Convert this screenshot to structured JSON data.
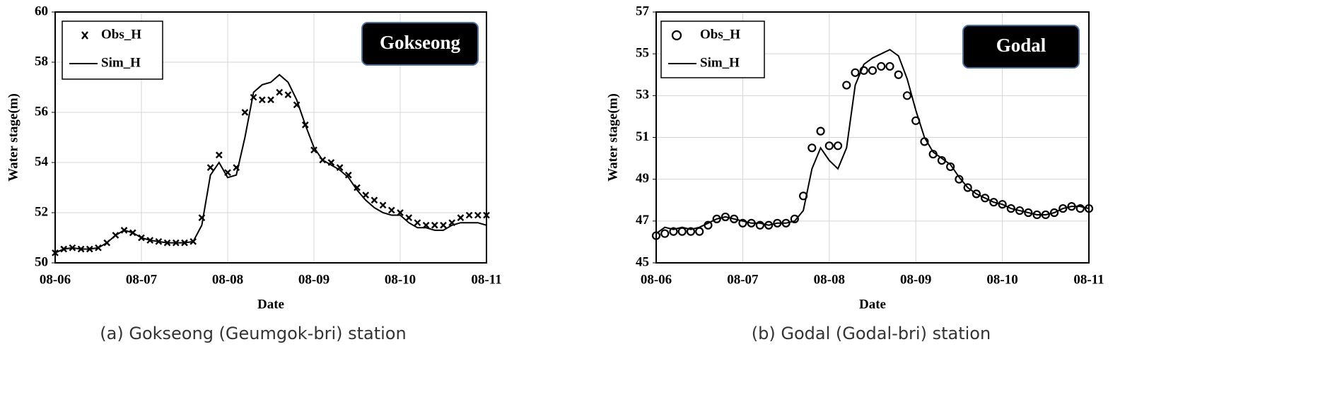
{
  "chart_data": [
    {
      "type": "line",
      "caption": "(a) Gokseong (Geumgok-bri) station",
      "xlabel": "Date",
      "ylabel": "Water stage(m)",
      "annotation": "Gokseong",
      "grid": true,
      "legend": "upper left",
      "x": [
        0,
        0.1,
        0.2,
        0.3,
        0.4,
        0.5,
        0.6,
        0.7,
        0.8,
        0.9,
        1.0,
        1.1,
        1.2,
        1.3,
        1.4,
        1.5,
        1.6,
        1.7,
        1.8,
        1.9,
        2.0,
        2.1,
        2.2,
        2.3,
        2.4,
        2.5,
        2.6,
        2.7,
        2.8,
        2.9,
        3.0,
        3.1,
        3.2,
        3.3,
        3.4,
        3.5,
        3.6,
        3.7,
        3.8,
        3.9,
        4.0,
        4.1,
        4.2,
        4.3,
        4.4,
        4.5,
        4.6,
        4.7,
        4.8,
        4.9,
        5.0
      ],
      "xlim": [
        0,
        5
      ],
      "xticks": [
        {
          "value": 0,
          "label": "08-06"
        },
        {
          "value": 1,
          "label": "08-07"
        },
        {
          "value": 2,
          "label": "08-08"
        },
        {
          "value": 3,
          "label": "08-09"
        },
        {
          "value": 4,
          "label": "08-10"
        },
        {
          "value": 5,
          "label": "08-11"
        }
      ],
      "ylim": [
        50,
        60
      ],
      "yticks": [
        50,
        52,
        54,
        56,
        58,
        60
      ],
      "series": [
        {
          "name": "Obs_H",
          "color": "#000000",
          "marker": "x",
          "values": [
            50.4,
            50.55,
            50.6,
            50.55,
            50.55,
            50.6,
            50.8,
            51.1,
            51.3,
            51.2,
            51.0,
            50.9,
            50.85,
            50.8,
            50.8,
            50.8,
            50.85,
            51.8,
            53.8,
            54.3,
            53.6,
            53.8,
            56.0,
            56.6,
            56.5,
            56.5,
            56.8,
            56.7,
            56.3,
            55.5,
            54.5,
            54.1,
            54.0,
            53.8,
            53.5,
            53.0,
            52.7,
            52.5,
            52.3,
            52.1,
            52.0,
            51.8,
            51.6,
            51.5,
            51.5,
            51.5,
            51.6,
            51.8,
            51.9,
            51.9,
            51.9
          ]
        },
        {
          "name": "Sim_H",
          "color": "#000000",
          "marker": "none",
          "values": [
            50.4,
            50.55,
            50.6,
            50.55,
            50.55,
            50.6,
            50.8,
            51.1,
            51.3,
            51.2,
            51.0,
            50.9,
            50.85,
            50.8,
            50.8,
            50.8,
            50.85,
            51.5,
            53.5,
            54.0,
            53.4,
            53.5,
            55.0,
            56.8,
            57.1,
            57.2,
            57.5,
            57.2,
            56.5,
            55.5,
            54.6,
            54.1,
            53.9,
            53.7,
            53.4,
            52.9,
            52.5,
            52.2,
            52.0,
            51.9,
            51.9,
            51.6,
            51.4,
            51.4,
            51.3,
            51.3,
            51.5,
            51.6,
            51.6,
            51.6,
            51.5
          ]
        }
      ]
    },
    {
      "type": "line",
      "caption": "(b) Godal (Godal-bri) station",
      "xlabel": "Date",
      "ylabel": "Water stage(m)",
      "annotation": "Godal",
      "grid": true,
      "legend": "upper left",
      "x": [
        0,
        0.1,
        0.2,
        0.3,
        0.4,
        0.5,
        0.6,
        0.7,
        0.8,
        0.9,
        1.0,
        1.1,
        1.2,
        1.3,
        1.4,
        1.5,
        1.6,
        1.7,
        1.8,
        1.9,
        2.0,
        2.1,
        2.2,
        2.3,
        2.4,
        2.5,
        2.6,
        2.7,
        2.8,
        2.9,
        3.0,
        3.1,
        3.2,
        3.3,
        3.4,
        3.5,
        3.6,
        3.7,
        3.8,
        3.9,
        4.0,
        4.1,
        4.2,
        4.3,
        4.4,
        4.5,
        4.6,
        4.7,
        4.8,
        4.9,
        5.0
      ],
      "xlim": [
        0,
        5
      ],
      "xticks": [
        {
          "value": 0,
          "label": "08-06"
        },
        {
          "value": 1,
          "label": "08-07"
        },
        {
          "value": 2,
          "label": "08-08"
        },
        {
          "value": 3,
          "label": "08-09"
        },
        {
          "value": 4,
          "label": "08-10"
        },
        {
          "value": 5,
          "label": "08-11"
        }
      ],
      "ylim": [
        45,
        57
      ],
      "yticks": [
        45,
        47,
        49,
        51,
        53,
        55,
        57
      ],
      "series": [
        {
          "name": "Obs_H",
          "color": "#000000",
          "marker": "circle",
          "values": [
            46.3,
            46.4,
            46.5,
            46.5,
            46.5,
            46.5,
            46.8,
            47.1,
            47.2,
            47.1,
            46.9,
            46.9,
            46.8,
            46.8,
            46.9,
            46.9,
            47.1,
            48.2,
            50.5,
            51.3,
            50.6,
            50.6,
            53.5,
            54.1,
            54.2,
            54.2,
            54.4,
            54.4,
            54.0,
            53.0,
            51.8,
            50.8,
            50.2,
            49.9,
            49.6,
            49.0,
            48.6,
            48.3,
            48.1,
            47.9,
            47.8,
            47.6,
            47.5,
            47.4,
            47.3,
            47.3,
            47.4,
            47.6,
            47.7,
            47.6,
            47.6
          ]
        },
        {
          "name": "Sim_H",
          "color": "#000000",
          "marker": "none",
          "values": [
            46.4,
            46.7,
            46.6,
            46.7,
            46.6,
            46.7,
            46.9,
            47.1,
            47.2,
            47.1,
            47.0,
            46.9,
            46.9,
            46.8,
            46.9,
            46.9,
            47.0,
            47.5,
            49.5,
            50.5,
            49.9,
            49.5,
            50.5,
            53.5,
            54.5,
            54.8,
            55.0,
            55.2,
            54.9,
            53.8,
            52.3,
            51.0,
            50.3,
            50.0,
            49.7,
            49.1,
            48.6,
            48.3,
            48.1,
            47.9,
            47.8,
            47.6,
            47.5,
            47.4,
            47.3,
            47.3,
            47.4,
            47.6,
            47.7,
            47.7,
            47.6
          ]
        }
      ]
    }
  ]
}
